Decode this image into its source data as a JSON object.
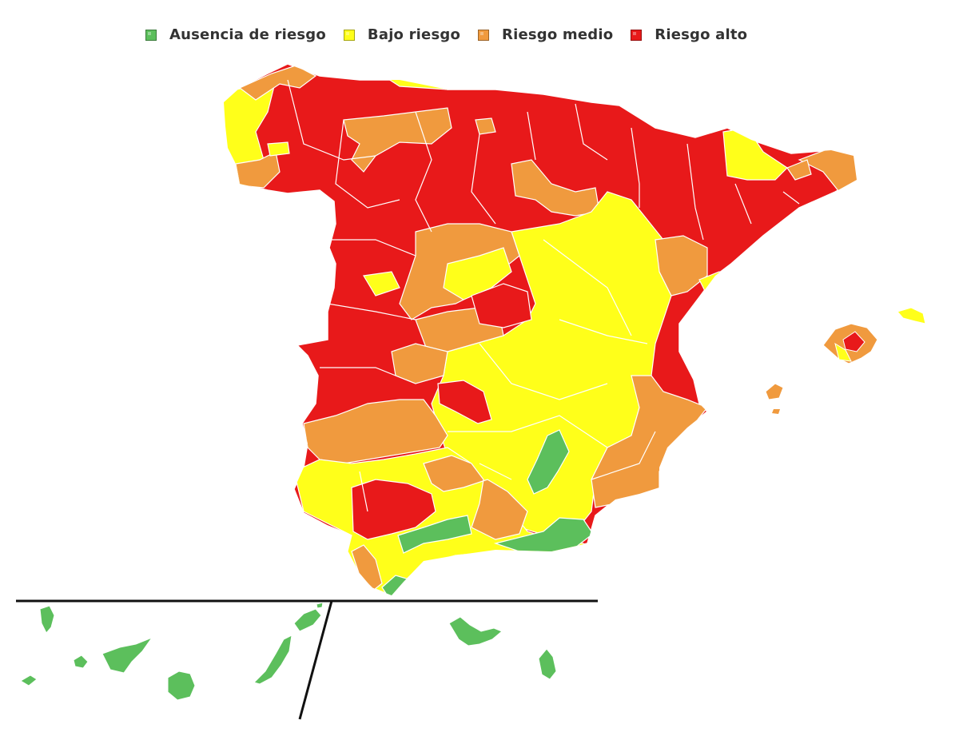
{
  "legend": {
    "items": [
      {
        "label": "Ausencia de riesgo",
        "color": "#5cbf5c"
      },
      {
        "label": "Bajo riesgo",
        "color": "#ffff1a"
      },
      {
        "label": "Riesgo medio",
        "color": "#f09a3e"
      },
      {
        "label": "Riesgo alto",
        "color": "#e8191a"
      }
    ]
  },
  "colors": {
    "green": "#5cbf5c",
    "yellow": "#ffff1a",
    "orange": "#f09a3e",
    "red": "#e8191a",
    "border": "#ffffff",
    "line": "#111111"
  }
}
